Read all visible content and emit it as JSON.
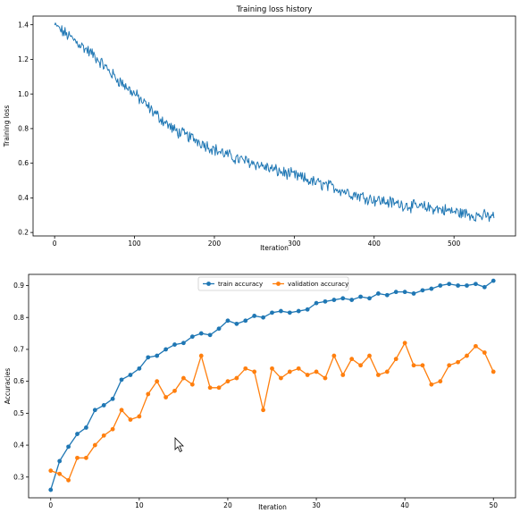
{
  "chart_data": [
    {
      "type": "line",
      "title": "Training loss history",
      "xlabel": "Iteration",
      "ylabel": "Training loss",
      "xlim": [
        -27,
        577
      ],
      "ylim": [
        0.18,
        1.45
      ],
      "xticks": [
        0,
        100,
        200,
        300,
        400,
        500
      ],
      "yticks": [
        0.2,
        0.4,
        0.6,
        0.8,
        1.0,
        1.2,
        1.4
      ],
      "ytick_labels": [
        "0.2",
        "0.4",
        "0.6",
        "0.8",
        "1.0",
        "1.2",
        "1.4"
      ],
      "grid": false,
      "colors": {
        "loss": "#1f77b4"
      },
      "trend_anchors": {
        "x": [
          0,
          10,
          25,
          50,
          75,
          100,
          125,
          150,
          175,
          200,
          225,
          250,
          275,
          300,
          325,
          350,
          375,
          400,
          425,
          450,
          475,
          500,
          525,
          550
        ],
        "y": [
          1.4,
          1.36,
          1.31,
          1.22,
          1.1,
          1.0,
          0.89,
          0.79,
          0.74,
          0.68,
          0.63,
          0.6,
          0.56,
          0.53,
          0.49,
          0.46,
          0.42,
          0.39,
          0.37,
          0.35,
          0.34,
          0.32,
          0.3,
          0.29
        ]
      },
      "noise": 0.03
    },
    {
      "type": "line",
      "title": "",
      "xlabel": "Iteration",
      "ylabel": "Accuracies",
      "xlim": [
        -2.5,
        52.5
      ],
      "ylim": [
        0.235,
        0.935
      ],
      "xticks": [
        0,
        10,
        20,
        30,
        40,
        50
      ],
      "yticks": [
        0.3,
        0.4,
        0.5,
        0.6,
        0.7,
        0.8,
        0.9
      ],
      "grid": false,
      "legend": "upper center",
      "x": [
        0,
        1,
        2,
        3,
        4,
        5,
        6,
        7,
        8,
        9,
        10,
        11,
        12,
        13,
        14,
        15,
        16,
        17,
        18,
        19,
        20,
        21,
        22,
        23,
        24,
        25,
        26,
        27,
        28,
        29,
        30,
        31,
        32,
        33,
        34,
        35,
        36,
        37,
        38,
        39,
        40,
        41,
        42,
        43,
        44,
        45,
        46,
        47,
        48,
        49,
        50
      ],
      "series": [
        {
          "name": "train accuracy",
          "color": "#1f77b4",
          "values": [
            0.26,
            0.35,
            0.395,
            0.435,
            0.455,
            0.51,
            0.525,
            0.545,
            0.605,
            0.62,
            0.64,
            0.675,
            0.68,
            0.7,
            0.715,
            0.72,
            0.74,
            0.75,
            0.745,
            0.765,
            0.79,
            0.78,
            0.79,
            0.805,
            0.8,
            0.815,
            0.82,
            0.815,
            0.82,
            0.825,
            0.845,
            0.85,
            0.855,
            0.86,
            0.855,
            0.865,
            0.86,
            0.875,
            0.87,
            0.88,
            0.88,
            0.875,
            0.885,
            0.89,
            0.9,
            0.905,
            0.9,
            0.9,
            0.905,
            0.895,
            0.915
          ]
        },
        {
          "name": "validation accuracy",
          "color": "#ff7f0e",
          "values": [
            0.32,
            0.31,
            0.29,
            0.36,
            0.36,
            0.4,
            0.43,
            0.45,
            0.51,
            0.48,
            0.49,
            0.56,
            0.6,
            0.55,
            0.57,
            0.61,
            0.59,
            0.68,
            0.58,
            0.58,
            0.6,
            0.61,
            0.64,
            0.63,
            0.51,
            0.64,
            0.61,
            0.63,
            0.64,
            0.62,
            0.63,
            0.61,
            0.68,
            0.62,
            0.67,
            0.65,
            0.68,
            0.62,
            0.63,
            0.67,
            0.72,
            0.65,
            0.65,
            0.59,
            0.6,
            0.65,
            0.66,
            0.68,
            0.71,
            0.69,
            0.63
          ]
        }
      ]
    }
  ]
}
